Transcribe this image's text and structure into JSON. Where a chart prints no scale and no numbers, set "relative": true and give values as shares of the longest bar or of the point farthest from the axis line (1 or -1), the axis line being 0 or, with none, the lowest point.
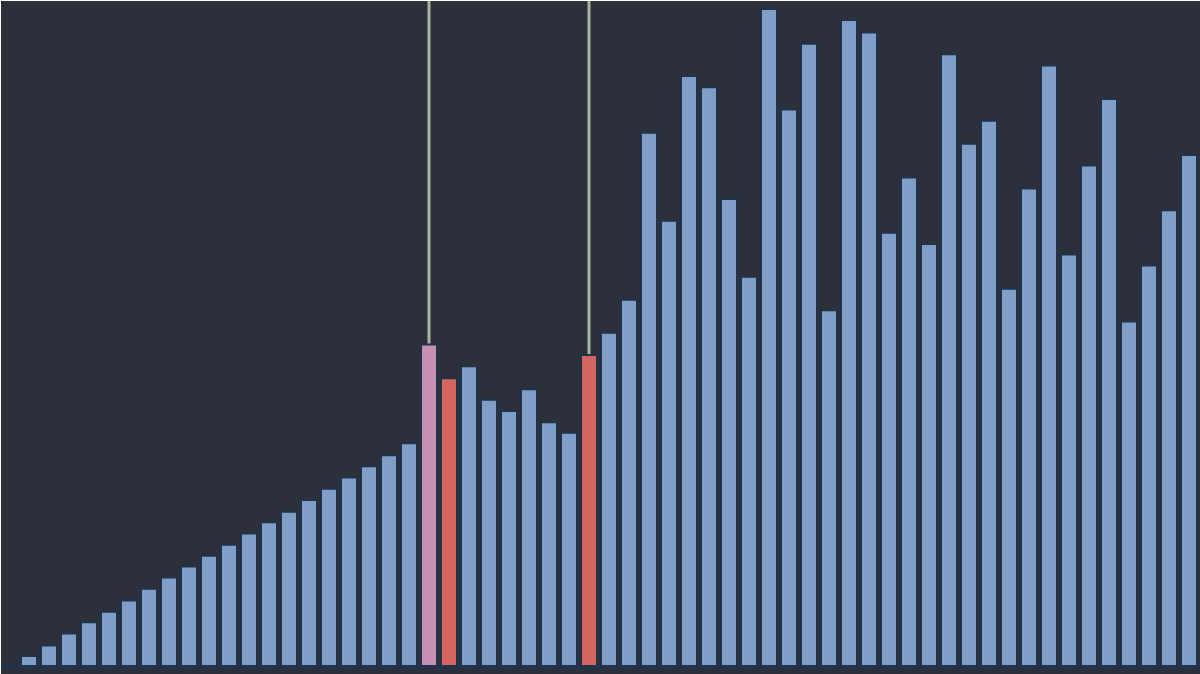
{
  "chart_data": {
    "type": "bar",
    "relative": true,
    "categories": [
      null,
      null,
      null,
      null,
      null,
      null,
      null,
      null,
      null,
      null,
      null,
      null,
      null,
      null,
      null,
      null,
      null,
      null,
      null,
      null,
      null,
      null,
      null,
      null,
      null,
      null,
      null,
      null,
      null,
      null,
      null,
      null,
      null,
      null,
      null,
      null,
      null,
      null,
      null,
      null,
      null,
      null,
      null,
      null,
      null,
      null,
      null,
      null,
      null,
      null,
      null,
      null,
      null,
      null,
      null,
      null,
      null,
      null,
      null
    ],
    "values": [
      0.017,
      0.033,
      0.051,
      0.068,
      0.084,
      0.101,
      0.119,
      0.136,
      0.153,
      0.169,
      0.186,
      0.203,
      0.22,
      0.236,
      0.254,
      0.271,
      0.288,
      0.305,
      0.322,
      0.34,
      0.49,
      0.439,
      0.457,
      0.406,
      0.389,
      0.422,
      0.372,
      0.356,
      0.474,
      0.508,
      0.558,
      0.812,
      0.678,
      0.898,
      0.881,
      0.711,
      0.593,
      1,
      0.847,
      0.947,
      0.542,
      0.983,
      0.964,
      0.66,
      0.744,
      0.643,
      0.931,
      0.795,
      0.83,
      0.575,
      0.727,
      0.914,
      0.627,
      0.762,
      0.863,
      0.525,
      0.61,
      0.694,
      0.778
    ],
    "colors": [
      "#7f9fc8",
      "#7f9fc8",
      "#7f9fc8",
      "#7f9fc8",
      "#7f9fc8",
      "#7f9fc8",
      "#7f9fc8",
      "#7f9fc8",
      "#7f9fc8",
      "#7f9fc8",
      "#7f9fc8",
      "#7f9fc8",
      "#7f9fc8",
      "#7f9fc8",
      "#7f9fc8",
      "#7f9fc8",
      "#7f9fc8",
      "#7f9fc8",
      "#7f9fc8",
      "#7f9fc8",
      "#c590b2",
      "#d4665f",
      "#7f9fc8",
      "#7f9fc8",
      "#7f9fc8",
      "#7f9fc8",
      "#7f9fc8",
      "#7f9fc8",
      "#d4665f",
      "#7f9fc8",
      "#7f9fc8",
      "#7f9fc8",
      "#7f9fc8",
      "#7f9fc8",
      "#7f9fc8",
      "#7f9fc8",
      "#7f9fc8",
      "#7f9fc8",
      "#7f9fc8",
      "#7f9fc8",
      "#7f9fc8",
      "#7f9fc8",
      "#7f9fc8",
      "#7f9fc8",
      "#7f9fc8",
      "#7f9fc8",
      "#7f9fc8",
      "#7f9fc8",
      "#7f9fc8",
      "#7f9fc8",
      "#7f9fc8",
      "#7f9fc8",
      "#7f9fc8",
      "#7f9fc8",
      "#7f9fc8",
      "#7f9fc8",
      "#7f9fc8",
      "#7f9fc8",
      "#7f9fc8"
    ],
    "grid": false,
    "tick_labels": false
  }
}
